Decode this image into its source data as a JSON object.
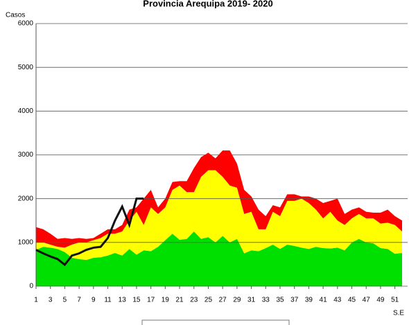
{
  "chart_data": {
    "type": "stacked-area-line",
    "title": "Provincia Arequipa 2019- 2020",
    "y_label": "Casos",
    "x_label": "S.E",
    "x": [
      1,
      2,
      3,
      4,
      5,
      6,
      7,
      8,
      9,
      10,
      11,
      12,
      13,
      14,
      15,
      16,
      17,
      18,
      19,
      20,
      21,
      22,
      23,
      24,
      25,
      26,
      27,
      28,
      29,
      30,
      31,
      32,
      33,
      34,
      35,
      36,
      37,
      38,
      39,
      40,
      41,
      42,
      43,
      44,
      45,
      46,
      47,
      48,
      49,
      50,
      51,
      52
    ],
    "xlim": [
      1,
      52
    ],
    "xticks": [
      1,
      3,
      5,
      7,
      9,
      11,
      13,
      15,
      17,
      19,
      21,
      23,
      25,
      27,
      29,
      31,
      33,
      35,
      37,
      39,
      41,
      43,
      45,
      47,
      49,
      51
    ],
    "ylim": [
      0,
      6000
    ],
    "yticks": [
      0,
      1000,
      2000,
      3000,
      4000,
      5000,
      6000
    ],
    "grid": true,
    "series": [
      {
        "color": "#00e000",
        "stack": true,
        "values": [
          830,
          900,
          880,
          850,
          780,
          650,
          620,
          600,
          650,
          660,
          700,
          760,
          700,
          850,
          720,
          820,
          800,
          900,
          1050,
          1200,
          1060,
          1080,
          1250,
          1080,
          1120,
          1000,
          1150,
          1000,
          1080,
          750,
          820,
          800,
          870,
          950,
          850,
          950,
          920,
          880,
          850,
          900,
          870,
          860,
          880,
          820,
          1000,
          1080,
          1000,
          980,
          870,
          850,
          740,
          760
        ]
      },
      {
        "color": "#ffff00",
        "stack": true,
        "values": [
          170,
          100,
          70,
          50,
          100,
          300,
          380,
          400,
          400,
          440,
          500,
          440,
          550,
          650,
          980,
          580,
          1000,
          750,
          750,
          1000,
          1240,
          1070,
          900,
          1420,
          1530,
          1650,
          1350,
          1300,
          1170,
          900,
          880,
          500,
          430,
          750,
          750,
          1000,
          1030,
          1120,
          1050,
          850,
          680,
          840,
          620,
          580,
          550,
          570,
          550,
          570,
          560,
          600,
          660,
          490
        ]
      },
      {
        "color": "#ff0000",
        "stack": true,
        "values": [
          350,
          300,
          250,
          180,
          220,
          130,
          100,
          80,
          50,
          100,
          100,
          100,
          150,
          250,
          100,
          600,
          400,
          150,
          200,
          180,
          100,
          250,
          550,
          450,
          400,
          270,
          600,
          800,
          550,
          550,
          350,
          450,
          300,
          150,
          200,
          150,
          150,
          50,
          150,
          250,
          350,
          250,
          500,
          250,
          200,
          150,
          150,
          130,
          250,
          300,
          200,
          250
        ]
      },
      {
        "color": "#111111",
        "stack": false,
        "values": [
          830,
          750,
          680,
          620,
          490,
          700,
          750,
          830,
          880,
          900,
          1100,
          1500,
          1820,
          1400,
          2000,
          2000,
          null,
          null,
          null,
          null,
          null,
          null,
          null,
          null,
          null,
          null,
          null,
          null,
          null,
          null,
          null,
          null,
          null,
          null,
          null,
          null,
          null,
          null,
          null,
          null,
          null,
          null,
          null,
          null,
          null,
          null,
          null,
          null,
          null,
          null,
          null,
          null
        ]
      }
    ]
  }
}
